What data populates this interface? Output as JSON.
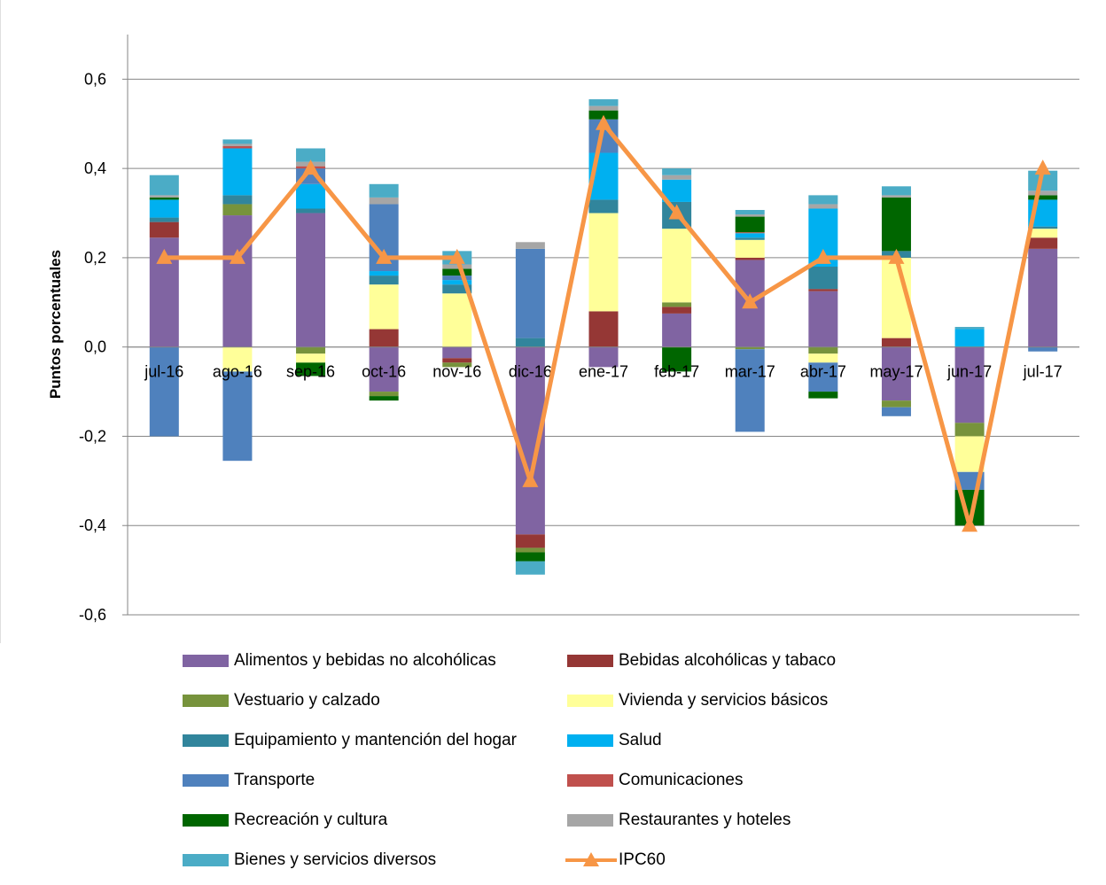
{
  "chart_data": {
    "type": "bar",
    "stacked": true,
    "categories": [
      "jul-16",
      "ago-16",
      "sep-16",
      "oct-16",
      "nov-16",
      "dic-16",
      "ene-17",
      "feb-17",
      "mar-17",
      "abr-17",
      "may-17",
      "jun-17",
      "jul-17"
    ],
    "ylabel": "Puntos porcentuales",
    "xlabel": "",
    "ylim": [
      -0.6,
      0.7
    ],
    "yticks": [
      -0.6,
      -0.4,
      -0.2,
      0.0,
      0.2,
      0.4,
      0.6
    ],
    "ytick_labels": [
      "-0,6",
      "-0,4",
      "-0,2",
      "0,0",
      "0,2",
      "0,4",
      "0,6"
    ],
    "grid": true,
    "legend_position": "bottom",
    "series": [
      {
        "name": "Alimentos y bebidas no alcohólicas",
        "color": "#8064A2",
        "values": [
          0.245,
          0.295,
          0.3,
          -0.1,
          -0.025,
          -0.42,
          -0.045,
          0.075,
          0.195,
          0.125,
          -0.12,
          -0.17,
          0.22
        ]
      },
      {
        "name": "Bebidas alcohólicas y tabaco",
        "color": "#953735",
        "values": [
          0.035,
          0.0,
          0.0,
          0.04,
          -0.01,
          -0.03,
          0.08,
          0.015,
          0.005,
          0.005,
          0.02,
          0.0,
          0.025
        ]
      },
      {
        "name": "Vestuario y calzado",
        "color": "#77933C",
        "values": [
          0.0,
          0.025,
          -0.015,
          -0.01,
          -0.01,
          -0.01,
          0.0,
          0.01,
          -0.005,
          -0.015,
          -0.015,
          -0.03,
          0.0
        ]
      },
      {
        "name": "Vivienda y servicios básicos",
        "color": "#FFFF99",
        "values": [
          0.0,
          -0.055,
          -0.02,
          0.1,
          0.12,
          0.0,
          0.22,
          0.165,
          0.04,
          -0.02,
          0.18,
          -0.08,
          0.02
        ]
      },
      {
        "name": "Equipamiento y mantención del hogar",
        "color": "#31859C",
        "values": [
          0.01,
          0.02,
          0.01,
          0.02,
          0.02,
          0.02,
          0.03,
          0.06,
          0.005,
          0.05,
          0.015,
          0.0,
          0.005
        ]
      },
      {
        "name": "Salud",
        "color": "#00B0F0",
        "values": [
          0.04,
          0.105,
          0.055,
          0.01,
          0.01,
          0.0,
          0.105,
          0.05,
          0.01,
          0.13,
          0.0,
          0.04,
          0.06
        ]
      },
      {
        "name": "Transporte",
        "color": "#4F81BD",
        "values": [
          -0.2,
          -0.2,
          0.035,
          0.15,
          0.01,
          0.2,
          0.075,
          0.0,
          -0.185,
          -0.065,
          -0.02,
          -0.04,
          -0.01
        ]
      },
      {
        "name": "Comunicaciones",
        "color": "#C0504D",
        "values": [
          0.0,
          0.005,
          0.005,
          0.0,
          0.0,
          0.0,
          0.0,
          0.0,
          0.002,
          0.0,
          0.0,
          0.0,
          0.0
        ]
      },
      {
        "name": "Recreación y cultura",
        "color": "#006600",
        "values": [
          0.005,
          0.0,
          -0.03,
          -0.01,
          0.015,
          -0.02,
          0.02,
          -0.055,
          0.035,
          -0.015,
          0.12,
          -0.08,
          0.01
        ]
      },
      {
        "name": "Restaurantes y hoteles",
        "color": "#A6A6A6",
        "values": [
          0.005,
          0.005,
          0.01,
          0.015,
          0.01,
          0.015,
          0.01,
          0.01,
          0.005,
          0.01,
          0.005,
          0.0,
          0.01
        ]
      },
      {
        "name": "Bienes y servicios diversos",
        "color": "#4BACC6",
        "values": [
          0.045,
          0.01,
          0.03,
          0.03,
          0.03,
          -0.03,
          0.015,
          0.015,
          0.01,
          0.02,
          0.02,
          0.005,
          0.045
        ]
      }
    ],
    "line_series": {
      "name": "IPC60",
      "color": "#F79646",
      "marker": "triangle",
      "values": [
        0.2,
        0.2,
        0.4,
        0.2,
        0.2,
        -0.3,
        0.5,
        0.3,
        0.1,
        0.2,
        0.2,
        -0.4,
        0.4
      ]
    }
  }
}
